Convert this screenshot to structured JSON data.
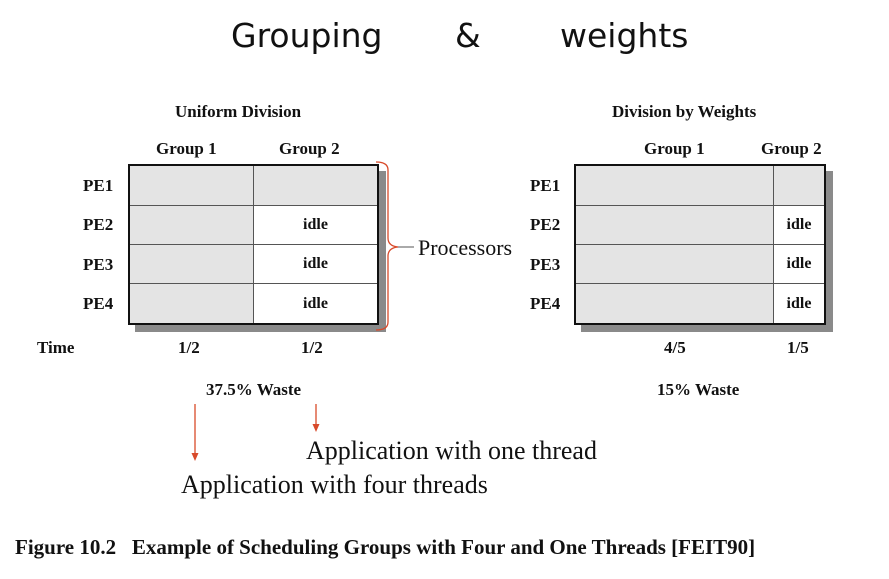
{
  "slide_title": {
    "part1": "Grouping",
    "part2": "&",
    "part3": "weights"
  },
  "left": {
    "title": "Uniform Division",
    "group1": "Group 1",
    "group2": "Group 2",
    "rows": [
      "PE1",
      "PE2",
      "PE3",
      "PE4"
    ],
    "idle": "idle",
    "time_label": "Time",
    "time_group1": "1/2",
    "time_group2": "1/2",
    "waste": "37.5% Waste"
  },
  "right": {
    "title": "Division by Weights",
    "group1": "Group 1",
    "group2": "Group 2",
    "rows": [
      "PE1",
      "PE2",
      "PE3",
      "PE4"
    ],
    "idle": "idle",
    "time_group1": "4/5",
    "time_group2": "1/5",
    "waste": "15% Waste"
  },
  "processors_label": "Processors",
  "annotations": {
    "one_thread": "Application with one thread",
    "four_threads": "Application with four threads"
  },
  "caption": "Figure 10.2   Example of Scheduling Groups with Four and One Threads [FEIT90]",
  "colors": {
    "arrow": "#d84a2a",
    "bracket": "#d84a2a",
    "cell_fill": "#e4e4e4",
    "shadow": "#8a8a8a"
  }
}
